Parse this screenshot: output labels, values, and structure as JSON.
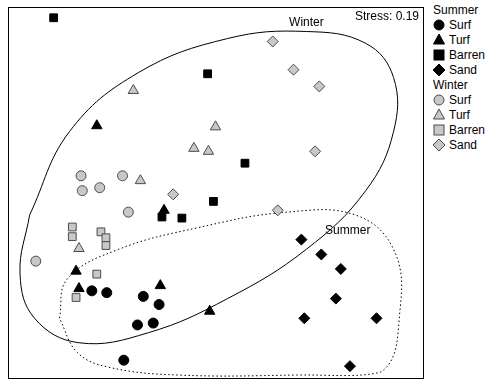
{
  "chart_data": {
    "type": "scatter",
    "annotation": "Stress: 0.19",
    "xlim": [
      0,
      100
    ],
    "ylim": [
      0,
      100
    ],
    "xticks": [],
    "yticks": [],
    "tick_labels": false,
    "grid": false,
    "legend": "right",
    "groups": [
      "Summer",
      "Winter"
    ],
    "series": [
      {
        "name": "Surf",
        "group": "Summer",
        "color": "#000000",
        "marker": "circle",
        "x": [
          20.2,
          23.8,
          32.6,
          36.4,
          35.0,
          31.2,
          27.9
        ],
        "y": [
          23.5,
          23.0,
          22.0,
          19.8,
          14.8,
          14.3,
          4.8
        ]
      },
      {
        "name": "Turf",
        "group": "Summer",
        "color": "#000000",
        "marker": "triangle",
        "x": [
          21.4,
          37.6,
          16.4,
          17.1,
          36.7,
          48.6
        ],
        "y": [
          68.0,
          45.2,
          28.8,
          24.1,
          24.9,
          18.0
        ]
      },
      {
        "name": "Barren",
        "group": "Summer",
        "color": "#000000",
        "marker": "square",
        "x": [
          11.0,
          48.1,
          57.1,
          37.1,
          41.9,
          49.5
        ],
        "y": [
          97.1,
          82.0,
          57.9,
          43.4,
          43.1,
          47.6
        ]
      },
      {
        "name": "Sand",
        "group": "Summer",
        "color": "#000000",
        "marker": "diamond",
        "x": [
          70.7,
          75.5,
          80.2,
          79.0,
          71.4,
          88.8,
          82.4
        ],
        "y": [
          37.3,
          33.3,
          29.4,
          21.4,
          16.1,
          16.1,
          3.2
        ]
      },
      {
        "name": "Surf",
        "group": "Winter",
        "color": "#c8c8c8",
        "marker": "circle",
        "x": [
          17.6,
          17.9,
          27.6,
          22.1,
          29.0,
          6.7
        ],
        "y": [
          54.5,
          50.5,
          54.5,
          51.3,
          44.7,
          31.5
        ]
      },
      {
        "name": "Turf",
        "group": "Winter",
        "color": "#c8c8c8",
        "marker": "triangle",
        "x": [
          30.2,
          50.0,
          44.8,
          48.3,
          31.9,
          17.1
        ],
        "y": [
          77.5,
          67.7,
          61.9,
          61.1,
          53.2,
          34.9
        ]
      },
      {
        "name": "Barren",
        "group": "Winter",
        "color": "#c8c8c8",
        "marker": "square",
        "x": [
          15.5,
          15.5,
          22.4,
          23.6,
          23.6,
          21.4,
          16.4
        ],
        "y": [
          40.7,
          38.1,
          39.4,
          37.8,
          35.7,
          28.0,
          21.7
        ]
      },
      {
        "name": "Sand",
        "group": "Winter",
        "color": "#c8c8c8",
        "marker": "diamond",
        "x": [
          63.8,
          68.8,
          75.0,
          74.0,
          39.8,
          65.0
        ],
        "y": [
          90.7,
          83.1,
          78.6,
          61.1,
          49.5,
          45.2
        ]
      }
    ],
    "outlines": [
      {
        "name": "Winter",
        "line_style": "solid",
        "color": "#000000",
        "x": [
          5.2,
          14.8,
          31.4,
          52.9,
          71.9,
          86.2,
          92.9,
          92.9,
          86.2,
          71.9,
          52.9,
          33.8,
          17.1,
          6.4,
          2.9
        ],
        "y": [
          43.9,
          66.4,
          82.3,
          91.5,
          93.4,
          90.2,
          81.0,
          66.4,
          50.5,
          34.7,
          21.4,
          12.2,
          9.5,
          16.1,
          28.0
        ]
      },
      {
        "name": "Summer",
        "line_style": "dotted",
        "color": "#000000",
        "x": [
          12.4,
          14.3,
          26.7,
          45.7,
          67.1,
          83.8,
          92.9,
          94.5,
          89.8,
          69.5,
          41.0,
          24.3,
          16.7
        ],
        "y": [
          16.1,
          26.7,
          34.7,
          40.5,
          44.7,
          43.9,
          34.7,
          18.8,
          1.6,
          0.8,
          0.8,
          2.9,
          6.9
        ]
      }
    ]
  }
}
